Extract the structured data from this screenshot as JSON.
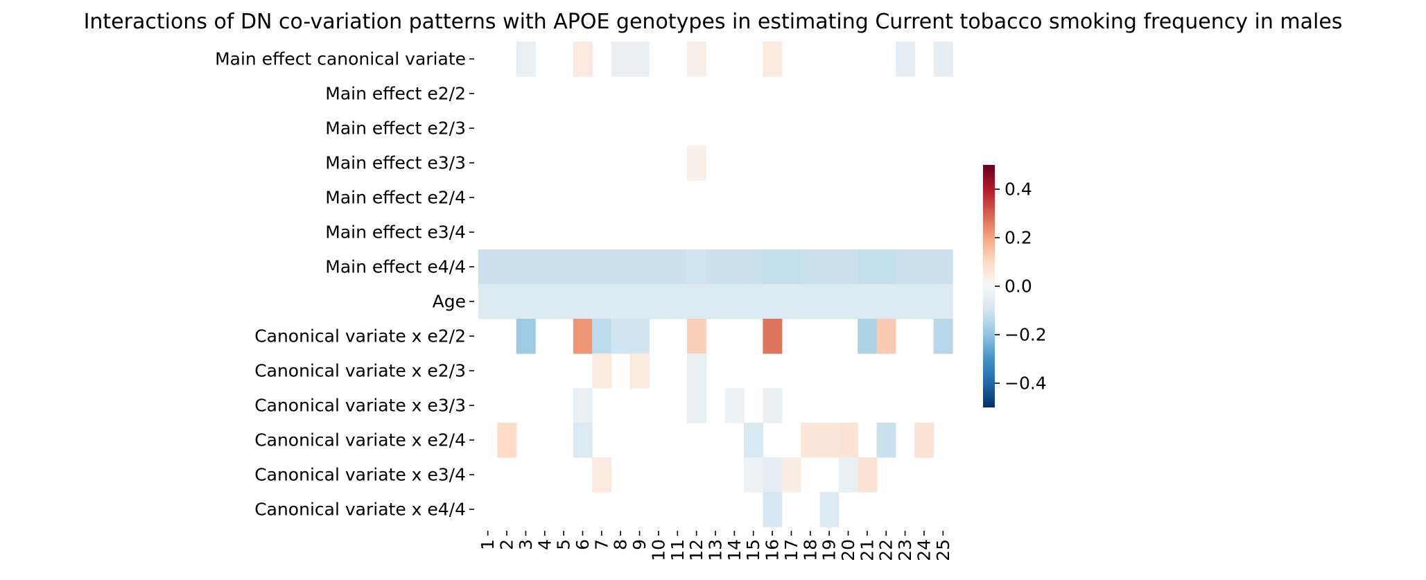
{
  "chart_data": {
    "type": "heatmap",
    "title": "Interactions of DN co-variation patterns with APOE genotypes in estimating Current tobacco smoking frequency in males",
    "xlabel": "",
    "ylabel": "",
    "x_labels": [
      "1",
      "2",
      "3",
      "4",
      "5",
      "6",
      "7",
      "8",
      "9",
      "10",
      "11",
      "12",
      "13",
      "14",
      "15",
      "16",
      "17",
      "18",
      "19",
      "20",
      "21",
      "22",
      "23",
      "24",
      "25"
    ],
    "y_labels": [
      "Main effect canonical variate",
      "Main effect e2/2",
      "Main effect e2/3",
      "Main effect e3/3",
      "Main effect e2/4",
      "Main effect e3/4",
      "Main effect e4/4",
      "Age",
      "Canonical variate x e2/2",
      "Canonical variate x e2/3",
      "Canonical variate x e3/3",
      "Canonical variate x e2/4",
      "Canonical variate x e3/4",
      "Canonical variate x e4/4"
    ],
    "values": [
      [
        0,
        0,
        -0.04,
        0,
        0,
        0.05,
        0,
        -0.04,
        -0.04,
        0,
        0,
        0.03,
        0,
        0,
        0,
        0.05,
        0,
        0,
        0,
        0,
        0,
        0,
        -0.05,
        0,
        -0.05
      ],
      [
        0,
        0,
        0,
        0,
        0,
        0,
        0,
        0,
        0,
        0,
        0,
        0,
        0,
        0,
        0,
        0,
        0,
        0,
        0,
        0,
        0,
        0,
        0,
        0,
        0
      ],
      [
        0,
        0,
        0,
        0,
        0,
        0,
        0,
        0,
        0,
        0,
        0,
        0,
        0,
        0,
        0,
        0,
        0,
        0,
        0,
        0,
        0,
        0,
        0,
        0,
        0
      ],
      [
        0,
        0,
        0,
        0,
        0,
        0,
        0,
        0,
        0,
        0,
        0,
        0.03,
        0,
        0,
        0,
        0,
        0,
        0,
        0,
        0,
        0,
        0,
        0,
        0,
        0
      ],
      [
        0,
        0,
        0,
        0,
        0,
        0,
        0,
        0,
        0,
        0,
        0,
        0,
        0,
        0,
        0,
        0,
        0,
        0,
        0,
        0,
        0,
        0,
        0,
        0,
        0
      ],
      [
        0,
        0,
        0,
        0,
        0,
        0,
        0,
        0,
        0,
        0,
        0,
        0,
        0,
        0,
        0,
        0,
        0,
        0,
        0,
        0,
        0,
        0,
        0,
        0,
        0
      ],
      [
        -0.11,
        -0.11,
        -0.11,
        -0.11,
        -0.11,
        -0.11,
        -0.11,
        -0.11,
        -0.11,
        -0.11,
        -0.11,
        -0.1,
        -0.11,
        -0.11,
        -0.11,
        -0.12,
        -0.12,
        -0.11,
        -0.11,
        -0.11,
        -0.12,
        -0.12,
        -0.11,
        -0.11,
        -0.11
      ],
      [
        -0.07,
        -0.07,
        -0.07,
        -0.07,
        -0.07,
        -0.07,
        -0.07,
        -0.07,
        -0.07,
        -0.07,
        -0.07,
        -0.07,
        -0.07,
        -0.07,
        -0.07,
        -0.07,
        -0.07,
        -0.07,
        -0.07,
        -0.07,
        -0.07,
        -0.07,
        -0.07,
        -0.07,
        -0.07
      ],
      [
        0,
        0,
        -0.18,
        0,
        0,
        0.22,
        -0.13,
        -0.1,
        -0.1,
        0,
        0,
        0.12,
        0,
        0,
        0,
        0.27,
        0,
        0,
        0,
        0,
        -0.16,
        0.13,
        0,
        0,
        -0.14
      ],
      [
        0,
        0,
        0,
        0,
        0,
        0,
        0.05,
        0,
        0.05,
        0,
        0,
        -0.04,
        0,
        0,
        0,
        0,
        0,
        0,
        0,
        0,
        0,
        0,
        0,
        0,
        0
      ],
      [
        0,
        0,
        0,
        0,
        0,
        -0.04,
        0,
        0,
        0,
        0,
        0,
        -0.04,
        0,
        -0.03,
        0,
        -0.04,
        0,
        0,
        0,
        0,
        0,
        0,
        0,
        0,
        0
      ],
      [
        0,
        0.1,
        0,
        0,
        0,
        -0.07,
        0,
        0,
        0,
        0,
        0,
        0,
        0,
        0,
        -0.08,
        0,
        0,
        0.06,
        0.06,
        0.07,
        0,
        -0.11,
        0,
        0.07,
        0
      ],
      [
        0,
        0,
        0,
        0,
        0,
        0,
        0.05,
        0,
        0,
        0,
        0,
        0,
        0,
        0,
        -0.03,
        -0.05,
        0.04,
        0,
        0,
        -0.04,
        0.07,
        0,
        0,
        0,
        0
      ],
      [
        0,
        0,
        0,
        0,
        0,
        0,
        0,
        0,
        0,
        0,
        0,
        0,
        0,
        0,
        0,
        -0.09,
        0,
        0,
        -0.07,
        0,
        0,
        0,
        0,
        0,
        0
      ]
    ],
    "colorbar": {
      "min": -0.5,
      "max": 0.5,
      "ticks": [
        "−0.4",
        "−0.2",
        "0.0",
        "0.2",
        "0.4"
      ],
      "colormap": "RdBu_r"
    },
    "colors": {
      "text": "#000000",
      "background": "#ffffff"
    }
  }
}
